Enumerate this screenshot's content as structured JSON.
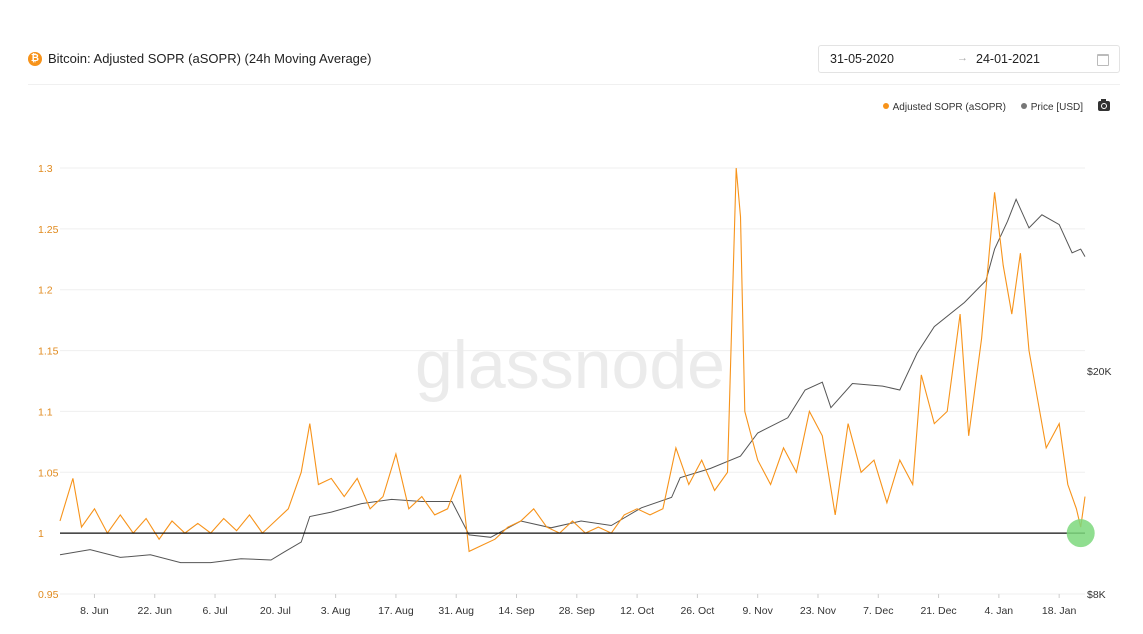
{
  "header": {
    "coin_icon": "bitcoin-icon",
    "title": "Bitcoin: Adjusted SOPR (aSOPR) (24h Moving Average)",
    "date_start": "31-05-2020",
    "date_arrow": "→",
    "date_end": "24-01-2021",
    "calendar_icon": "calendar-icon"
  },
  "toolbar": {
    "camera_icon": "camera-icon"
  },
  "watermark": "glassnode",
  "colors": {
    "asopr": "#f7931a",
    "price": "#555555",
    "baseline": "#111111",
    "marker": "#7dd87d",
    "axis_left": "#e08a1e",
    "grid": "#efefef"
  },
  "chart_data": {
    "type": "line",
    "title": "Bitcoin: Adjusted SOPR (aSOPR) (24h Moving Average)",
    "legend": [
      "Adjusted SOPR (aSOPR)",
      "Price [USD]"
    ],
    "legend_position": "top-right",
    "grid": true,
    "x_start": "2020-05-31",
    "x_end": "2021-01-24",
    "x_ticks": [
      "8. Jun",
      "22. Jun",
      "6. Jul",
      "20. Jul",
      "3. Aug",
      "17. Aug",
      "31. Aug",
      "14. Sep",
      "28. Sep",
      "12. Oct",
      "26. Oct",
      "9. Nov",
      "23. Nov",
      "7. Dec",
      "21. Dec",
      "4. Jan",
      "18. Jan"
    ],
    "y_left": {
      "ticks": [
        "1.3",
        "1.25",
        "1.2",
        "1.15",
        "1.1",
        "1.05",
        "1",
        "0.95"
      ],
      "ylim": [
        0.95,
        1.3
      ]
    },
    "y_right": {
      "ticks": [
        "$20K",
        "$8K"
      ],
      "scale": "log"
    },
    "reference_line": 1,
    "highlight_marker": {
      "date": "2021-01-23",
      "value": 1.0
    },
    "series": [
      {
        "name": "Adjusted SOPR (aSOPR)",
        "axis": "left",
        "points": [
          [
            "2020-05-31",
            1.01
          ],
          [
            "2020-06-03",
            1.045
          ],
          [
            "2020-06-05",
            1.005
          ],
          [
            "2020-06-08",
            1.02
          ],
          [
            "2020-06-11",
            1.0
          ],
          [
            "2020-06-14",
            1.015
          ],
          [
            "2020-06-17",
            1.0
          ],
          [
            "2020-06-20",
            1.012
          ],
          [
            "2020-06-23",
            0.995
          ],
          [
            "2020-06-26",
            1.01
          ],
          [
            "2020-06-29",
            1.0
          ],
          [
            "2020-07-02",
            1.008
          ],
          [
            "2020-07-05",
            1.0
          ],
          [
            "2020-07-08",
            1.012
          ],
          [
            "2020-07-11",
            1.002
          ],
          [
            "2020-07-14",
            1.015
          ],
          [
            "2020-07-17",
            1.0
          ],
          [
            "2020-07-20",
            1.01
          ],
          [
            "2020-07-23",
            1.02
          ],
          [
            "2020-07-26",
            1.05
          ],
          [
            "2020-07-28",
            1.09
          ],
          [
            "2020-07-30",
            1.04
          ],
          [
            "2020-08-02",
            1.045
          ],
          [
            "2020-08-05",
            1.03
          ],
          [
            "2020-08-08",
            1.045
          ],
          [
            "2020-08-11",
            1.02
          ],
          [
            "2020-08-14",
            1.03
          ],
          [
            "2020-08-17",
            1.065
          ],
          [
            "2020-08-20",
            1.02
          ],
          [
            "2020-08-23",
            1.03
          ],
          [
            "2020-08-26",
            1.015
          ],
          [
            "2020-08-29",
            1.02
          ],
          [
            "2020-09-01",
            1.048
          ],
          [
            "2020-09-03",
            0.985
          ],
          [
            "2020-09-06",
            0.99
          ],
          [
            "2020-09-09",
            0.995
          ],
          [
            "2020-09-12",
            1.005
          ],
          [
            "2020-09-15",
            1.01
          ],
          [
            "2020-09-18",
            1.02
          ],
          [
            "2020-09-21",
            1.005
          ],
          [
            "2020-09-24",
            1.0
          ],
          [
            "2020-09-27",
            1.01
          ],
          [
            "2020-09-30",
            1.0
          ],
          [
            "2020-10-03",
            1.005
          ],
          [
            "2020-10-06",
            1.0
          ],
          [
            "2020-10-09",
            1.015
          ],
          [
            "2020-10-12",
            1.02
          ],
          [
            "2020-10-15",
            1.015
          ],
          [
            "2020-10-18",
            1.02
          ],
          [
            "2020-10-21",
            1.07
          ],
          [
            "2020-10-24",
            1.04
          ],
          [
            "2020-10-27",
            1.06
          ],
          [
            "2020-10-30",
            1.035
          ],
          [
            "2020-11-02",
            1.05
          ],
          [
            "2020-11-04",
            1.3
          ],
          [
            "2020-11-05",
            1.26
          ],
          [
            "2020-11-06",
            1.1
          ],
          [
            "2020-11-09",
            1.06
          ],
          [
            "2020-11-12",
            1.04
          ],
          [
            "2020-11-15",
            1.07
          ],
          [
            "2020-11-18",
            1.05
          ],
          [
            "2020-11-21",
            1.1
          ],
          [
            "2020-11-24",
            1.08
          ],
          [
            "2020-11-27",
            1.015
          ],
          [
            "2020-11-30",
            1.09
          ],
          [
            "2020-12-03",
            1.05
          ],
          [
            "2020-12-06",
            1.06
          ],
          [
            "2020-12-09",
            1.025
          ],
          [
            "2020-12-12",
            1.06
          ],
          [
            "2020-12-15",
            1.04
          ],
          [
            "2020-12-17",
            1.13
          ],
          [
            "2020-12-20",
            1.09
          ],
          [
            "2020-12-23",
            1.1
          ],
          [
            "2020-12-26",
            1.18
          ],
          [
            "2020-12-28",
            1.08
          ],
          [
            "2020-12-31",
            1.16
          ],
          [
            "2021-01-03",
            1.28
          ],
          [
            "2021-01-05",
            1.22
          ],
          [
            "2021-01-07",
            1.18
          ],
          [
            "2021-01-09",
            1.23
          ],
          [
            "2021-01-11",
            1.15
          ],
          [
            "2021-01-13",
            1.11
          ],
          [
            "2021-01-15",
            1.07
          ],
          [
            "2021-01-18",
            1.09
          ],
          [
            "2021-01-20",
            1.04
          ],
          [
            "2021-01-22",
            1.02
          ],
          [
            "2021-01-23",
            1.005
          ],
          [
            "2021-01-24",
            1.03
          ]
        ]
      },
      {
        "name": "Price [USD]",
        "axis": "right",
        "points": [
          [
            "2020-05-31",
            9400
          ],
          [
            "2020-06-07",
            9600
          ],
          [
            "2020-06-14",
            9300
          ],
          [
            "2020-06-21",
            9400
          ],
          [
            "2020-06-28",
            9100
          ],
          [
            "2020-07-05",
            9100
          ],
          [
            "2020-07-12",
            9250
          ],
          [
            "2020-07-19",
            9200
          ],
          [
            "2020-07-22",
            9500
          ],
          [
            "2020-07-26",
            9900
          ],
          [
            "2020-07-28",
            11000
          ],
          [
            "2020-08-02",
            11200
          ],
          [
            "2020-08-09",
            11600
          ],
          [
            "2020-08-16",
            11800
          ],
          [
            "2020-08-23",
            11700
          ],
          [
            "2020-08-30",
            11700
          ],
          [
            "2020-09-03",
            10200
          ],
          [
            "2020-09-08",
            10100
          ],
          [
            "2020-09-15",
            10800
          ],
          [
            "2020-09-22",
            10500
          ],
          [
            "2020-09-29",
            10800
          ],
          [
            "2020-10-06",
            10600
          ],
          [
            "2020-10-13",
            11400
          ],
          [
            "2020-10-20",
            11900
          ],
          [
            "2020-10-22",
            12900
          ],
          [
            "2020-10-29",
            13400
          ],
          [
            "2020-11-05",
            14100
          ],
          [
            "2020-11-09",
            15500
          ],
          [
            "2020-11-16",
            16500
          ],
          [
            "2020-11-20",
            18500
          ],
          [
            "2020-11-24",
            19100
          ],
          [
            "2020-11-26",
            17200
          ],
          [
            "2020-12-01",
            19000
          ],
          [
            "2020-12-08",
            18800
          ],
          [
            "2020-12-12",
            18500
          ],
          [
            "2020-12-16",
            21500
          ],
          [
            "2020-12-20",
            24000
          ],
          [
            "2020-12-27",
            26500
          ],
          [
            "2021-01-01",
            29000
          ],
          [
            "2021-01-03",
            33000
          ],
          [
            "2021-01-06",
            37000
          ],
          [
            "2021-01-08",
            40500
          ],
          [
            "2021-01-11",
            36000
          ],
          [
            "2021-01-14",
            38000
          ],
          [
            "2021-01-18",
            36500
          ],
          [
            "2021-01-21",
            32500
          ],
          [
            "2021-01-23",
            33000
          ],
          [
            "2021-01-24",
            32000
          ]
        ]
      }
    ]
  }
}
